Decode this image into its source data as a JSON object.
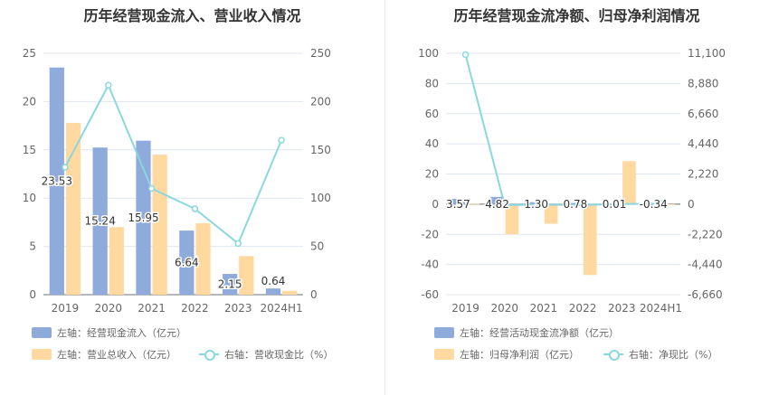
{
  "colors": {
    "bar_blue": "#8fabdc",
    "bar_orange": "#ffd9a0",
    "line_cyan": "#8ad7df",
    "axis_text": "#666666",
    "grid": "#e0e6f1"
  },
  "left_panel": {
    "title": "历年经营现金流入、营业收入情况",
    "legend": {
      "bar1": "左轴：经营现金流入（亿元）",
      "bar2": "左轴：营业总收入（亿元）",
      "line": "右轴：营收现金比（%）"
    }
  },
  "right_panel": {
    "title": "历年经营现金流净额、归母净利润情况",
    "legend": {
      "bar1": "左轴：经营活动现金流净额（亿元）",
      "bar2": "左轴：归母净利润（亿元）",
      "line": "右轴：净现比（%）"
    }
  },
  "chart_data": [
    {
      "type": "bar",
      "title": "历年经营现金流入、营业收入情况",
      "categories": [
        "2019",
        "2020",
        "2021",
        "2022",
        "2023",
        "2024H1"
      ],
      "series": [
        {
          "name": "经营现金流入（亿元）",
          "axis": "left",
          "values": [
            23.53,
            15.24,
            15.95,
            6.64,
            2.15,
            0.64
          ],
          "data_labels": [
            "23.53",
            "15.24",
            "15.95",
            "6.64",
            "2.15",
            "0.64"
          ]
        },
        {
          "name": "营业总收入（亿元）",
          "axis": "left",
          "values": [
            17.8,
            7.0,
            14.5,
            7.4,
            4.0,
            0.4
          ]
        },
        {
          "name": "营收现金比（%）",
          "axis": "right",
          "type": "line",
          "values": [
            132,
            217,
            110,
            89,
            53,
            160
          ]
        }
      ],
      "ylim_left": [
        0,
        25
      ],
      "ylim_right": [
        0,
        250
      ],
      "yticks_left": [
        "0",
        "5",
        "10",
        "15",
        "20",
        "25"
      ],
      "yticks_right": [
        "0",
        "50",
        "100",
        "150",
        "200",
        "250"
      ]
    },
    {
      "type": "bar",
      "title": "历年经营现金流净额、归母净利润情况",
      "categories": [
        "2019",
        "2020",
        "2021",
        "2022",
        "2023",
        "2024H1"
      ],
      "series": [
        {
          "name": "经营活动现金流净额（亿元）",
          "axis": "left",
          "values": [
            3.57,
            4.82,
            1.3,
            0.78,
            0.01,
            -0.34
          ],
          "data_labels": [
            "3.57",
            "4.82",
            "1.30",
            "0.78",
            "0.01",
            "-0.34"
          ]
        },
        {
          "name": "归母净利润（亿元）",
          "axis": "left",
          "values": [
            0.3,
            -20,
            -13,
            -47,
            28.5,
            -0.5
          ]
        },
        {
          "name": "净现比（%）",
          "axis": "right",
          "type": "line",
          "values": [
            11000,
            -60,
            -40,
            -60,
            5,
            40
          ]
        }
      ],
      "ylim_left": [
        -60,
        100
      ],
      "ylim_right": [
        -6660,
        11100
      ],
      "yticks_left": [
        "100",
        "80",
        "60",
        "40",
        "20",
        "0",
        "-20",
        "-40",
        "-60"
      ],
      "yticks_right": [
        "11,100",
        "8,880",
        "6,660",
        "4,440",
        "2,220",
        "0",
        "-2,220",
        "-4,440",
        "-6,660"
      ]
    }
  ]
}
